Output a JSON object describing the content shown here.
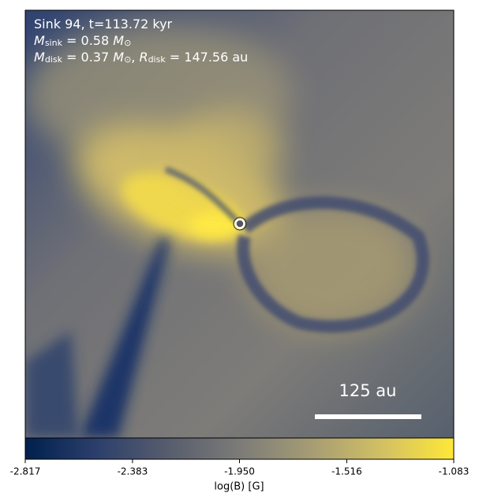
{
  "chart_data": {
    "type": "heatmap",
    "annotations": [
      [
        {
          "text": "Sink 94, t=113.72 kyr"
        }
      ],
      [
        {
          "text": "M",
          "style": "math"
        },
        {
          "text": "sink",
          "style": "sub"
        },
        {
          "text": " = 0.58 "
        },
        {
          "text": "M",
          "style": "math"
        },
        {
          "text": "⊙",
          "style": "sub"
        }
      ],
      [
        {
          "text": "M",
          "style": "math"
        },
        {
          "text": "disk",
          "style": "sub"
        },
        {
          "text": " = 0.37 "
        },
        {
          "text": "M",
          "style": "math"
        },
        {
          "text": "⊙",
          "style": "sub"
        },
        {
          "text": ", "
        },
        {
          "text": "R",
          "style": "math"
        },
        {
          "text": "disk",
          "style": "sub"
        },
        {
          "text": " = 147.56 au"
        }
      ]
    ],
    "scale_bar_label": "125 au",
    "colorbar": {
      "label": "log(B) [G]",
      "xlim": [
        -2.817,
        -1.083
      ],
      "xticks": [
        -2.817,
        -2.383,
        {
          "value": -1.95,
          "label": "-1.950"
        },
        -1.516,
        -1.083
      ],
      "colors": [
        "#00204c",
        "#2c3f6c",
        "#575d6d",
        "#7c7b78",
        "#a59c74",
        "#d3c064",
        "#fee838"
      ]
    }
  }
}
